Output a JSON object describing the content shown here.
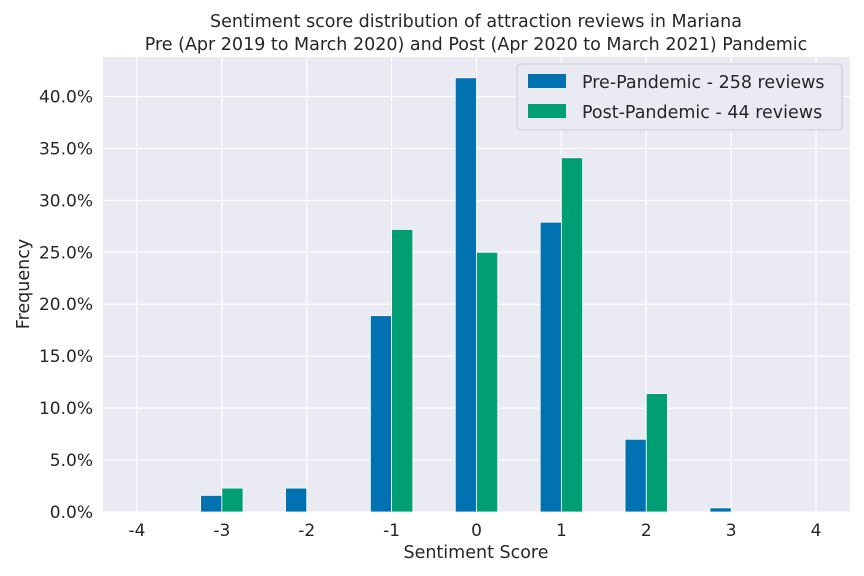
{
  "chart_data": {
    "type": "bar",
    "title": "Sentiment score distribution of attraction reviews in Mariana",
    "subtitle": "Pre (Apr 2019 to March 2020) and Post (Apr 2020 to March 2021) Pandemic",
    "xlabel": "Sentiment Score",
    "ylabel": "Frequency",
    "categories": [
      -3,
      -2,
      -1,
      0,
      1,
      2,
      3
    ],
    "series": [
      {
        "name": "Pre-Pandemic - 258 reviews",
        "color": "#0072b2",
        "values": [
          1.6,
          2.3,
          18.9,
          41.8,
          27.9,
          7.0,
          0.4
        ]
      },
      {
        "name": "Post-Pandemic - 44 reviews",
        "color": "#009e73",
        "values": [
          2.3,
          0.0,
          27.2,
          25.0,
          34.1,
          11.4,
          0.0
        ]
      }
    ],
    "xlim": [
      -4.4,
      4.4
    ],
    "ylim": [
      0,
      43.8
    ],
    "xticks": [
      "-4",
      "-3",
      "-2",
      "-1",
      "0",
      "1",
      "2",
      "3",
      "4"
    ],
    "yticks": [
      "0.0%",
      "5.0%",
      "10.0%",
      "15.0%",
      "20.0%",
      "25.0%",
      "30.0%",
      "35.0%",
      "40.0%"
    ],
    "grid": true,
    "legend_position": "top-right",
    "background": "#eaeaf2"
  }
}
